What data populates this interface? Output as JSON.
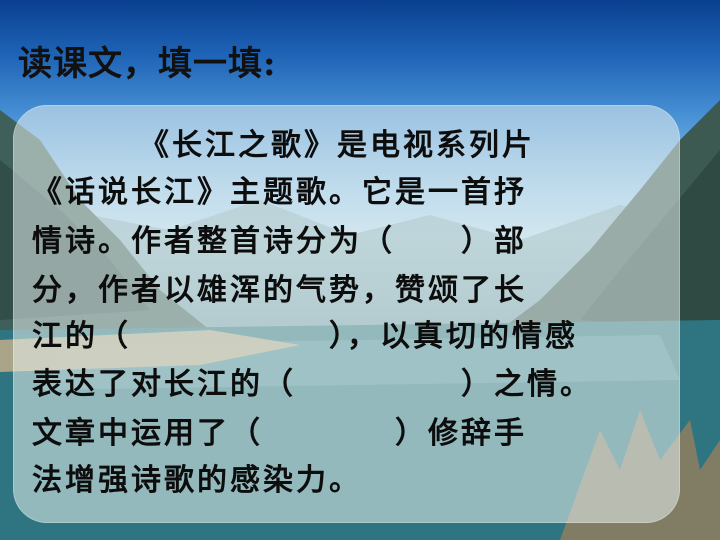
{
  "slide": {
    "title": "读课文，填一填:",
    "paragraph_lines": [
      "《长江之歌》是电视系列片",
      "《话说长江》主题歌。它是一首抒",
      "情诗。作者整首诗分为（　　）部",
      "分，作者以雄浑的气势，赞颂了长",
      "江的（　　　　　　），以真切的情感",
      "表达了对长江的（　　　　　）之情。",
      "文章中运用了（　　　　）修辞手",
      "法增强诗歌的感染力。"
    ]
  }
}
